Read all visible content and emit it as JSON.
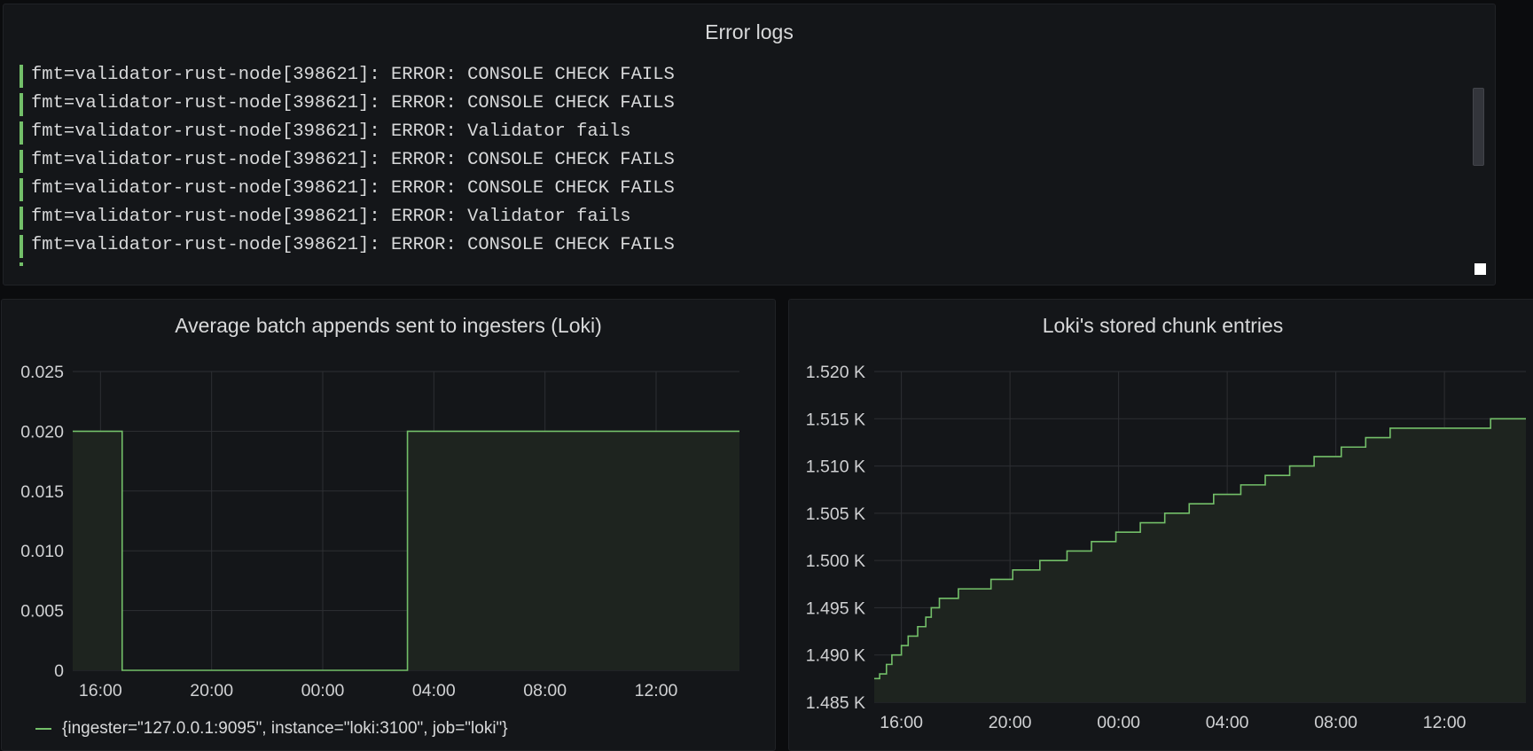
{
  "logs_panel": {
    "title": "Error logs",
    "lines": [
      "fmt=validator-rust-node[398621]: ERROR: CONSOLE CHECK FAILS",
      "fmt=validator-rust-node[398621]: ERROR: CONSOLE CHECK FAILS",
      "fmt=validator-rust-node[398621]: ERROR: Validator fails",
      "fmt=validator-rust-node[398621]: ERROR: CONSOLE CHECK FAILS",
      "fmt=validator-rust-node[398621]: ERROR: CONSOLE CHECK FAILS",
      "fmt=validator-rust-node[398621]: ERROR: Validator fails",
      "fmt=validator-rust-node[398621]: ERROR: CONSOLE CHECK FAILS"
    ],
    "level_color": "#73bf69"
  },
  "batch_panel": {
    "title": "Average batch appends sent to ingesters (Loki)",
    "legend": "{ingester=\"127.0.0.1:9095\", instance=\"loki:3100\", job=\"loki\"}"
  },
  "chunk_panel": {
    "title": "Loki's stored chunk entries"
  },
  "colors": {
    "series": "#73bf69",
    "fill": "#1e241f",
    "grid": "#2d2f33",
    "panel_bg": "#141619"
  },
  "chart_data": [
    {
      "type": "area",
      "title": "Average batch appends sent to ingesters (Loki)",
      "x_unit": "hours since 16:00",
      "x_ticks": [
        0,
        4,
        8,
        12,
        16,
        20
      ],
      "x_tick_labels": [
        "16:00",
        "20:00",
        "00:00",
        "04:00",
        "08:00",
        "12:00"
      ],
      "xlim": [
        -1,
        23
      ],
      "y_ticks": [
        0,
        0.005,
        0.01,
        0.015,
        0.02,
        0.025
      ],
      "y_tick_labels": [
        "0",
        "0.005",
        "0.010",
        "0.015",
        "0.020",
        "0.025"
      ],
      "ylim": [
        0,
        0.025
      ],
      "grid": true,
      "legend_position": "bottom-left",
      "series": [
        {
          "name": "{ingester=\"127.0.0.1:9095\", instance=\"loki:3100\", job=\"loki\"}",
          "x": [
            -1,
            0.75,
            0.78,
            11.0,
            11.05,
            23
          ],
          "y": [
            0.02,
            0.02,
            0,
            0,
            0.02,
            0.02
          ]
        }
      ]
    },
    {
      "type": "area",
      "title": "Loki's stored chunk entries",
      "x_unit": "hours since 16:00",
      "x_ticks": [
        0,
        4,
        8,
        12,
        16,
        20
      ],
      "x_tick_labels": [
        "16:00",
        "20:00",
        "00:00",
        "04:00",
        "08:00",
        "12:00"
      ],
      "xlim": [
        -1,
        23
      ],
      "y_ticks": [
        1485,
        1490,
        1495,
        1500,
        1505,
        1510,
        1515,
        1520
      ],
      "y_tick_labels": [
        "1.485 K",
        "1.490 K",
        "1.495 K",
        "1.500 K",
        "1.505 K",
        "1.510 K",
        "1.515 K",
        "1.520 K"
      ],
      "ylim": [
        1485,
        1520
      ],
      "grid": true,
      "series": [
        {
          "x": [
            -1,
            -0.8,
            -0.55,
            -0.35,
            0.0,
            0.25,
            0.6,
            0.9,
            1.1,
            1.4,
            2.1,
            3.3,
            4.1,
            5.1,
            6.1,
            7.0,
            7.9,
            8.8,
            9.7,
            10.6,
            11.5,
            12.5,
            13.4,
            14.3,
            15.2,
            16.2,
            17.1,
            18.0,
            18.9,
            19.9,
            20.8,
            21.7,
            22.6
          ],
          "y": [
            1487.5,
            1488,
            1489,
            1490,
            1491,
            1492,
            1493,
            1494,
            1495,
            1496,
            1497,
            1498,
            1499,
            1500,
            1501,
            1502,
            1503,
            1504,
            1505,
            1506,
            1507,
            1508,
            1509,
            1510,
            1511,
            1512,
            1513,
            1514,
            1514,
            1514,
            1514,
            1515,
            1515
          ]
        }
      ]
    }
  ]
}
